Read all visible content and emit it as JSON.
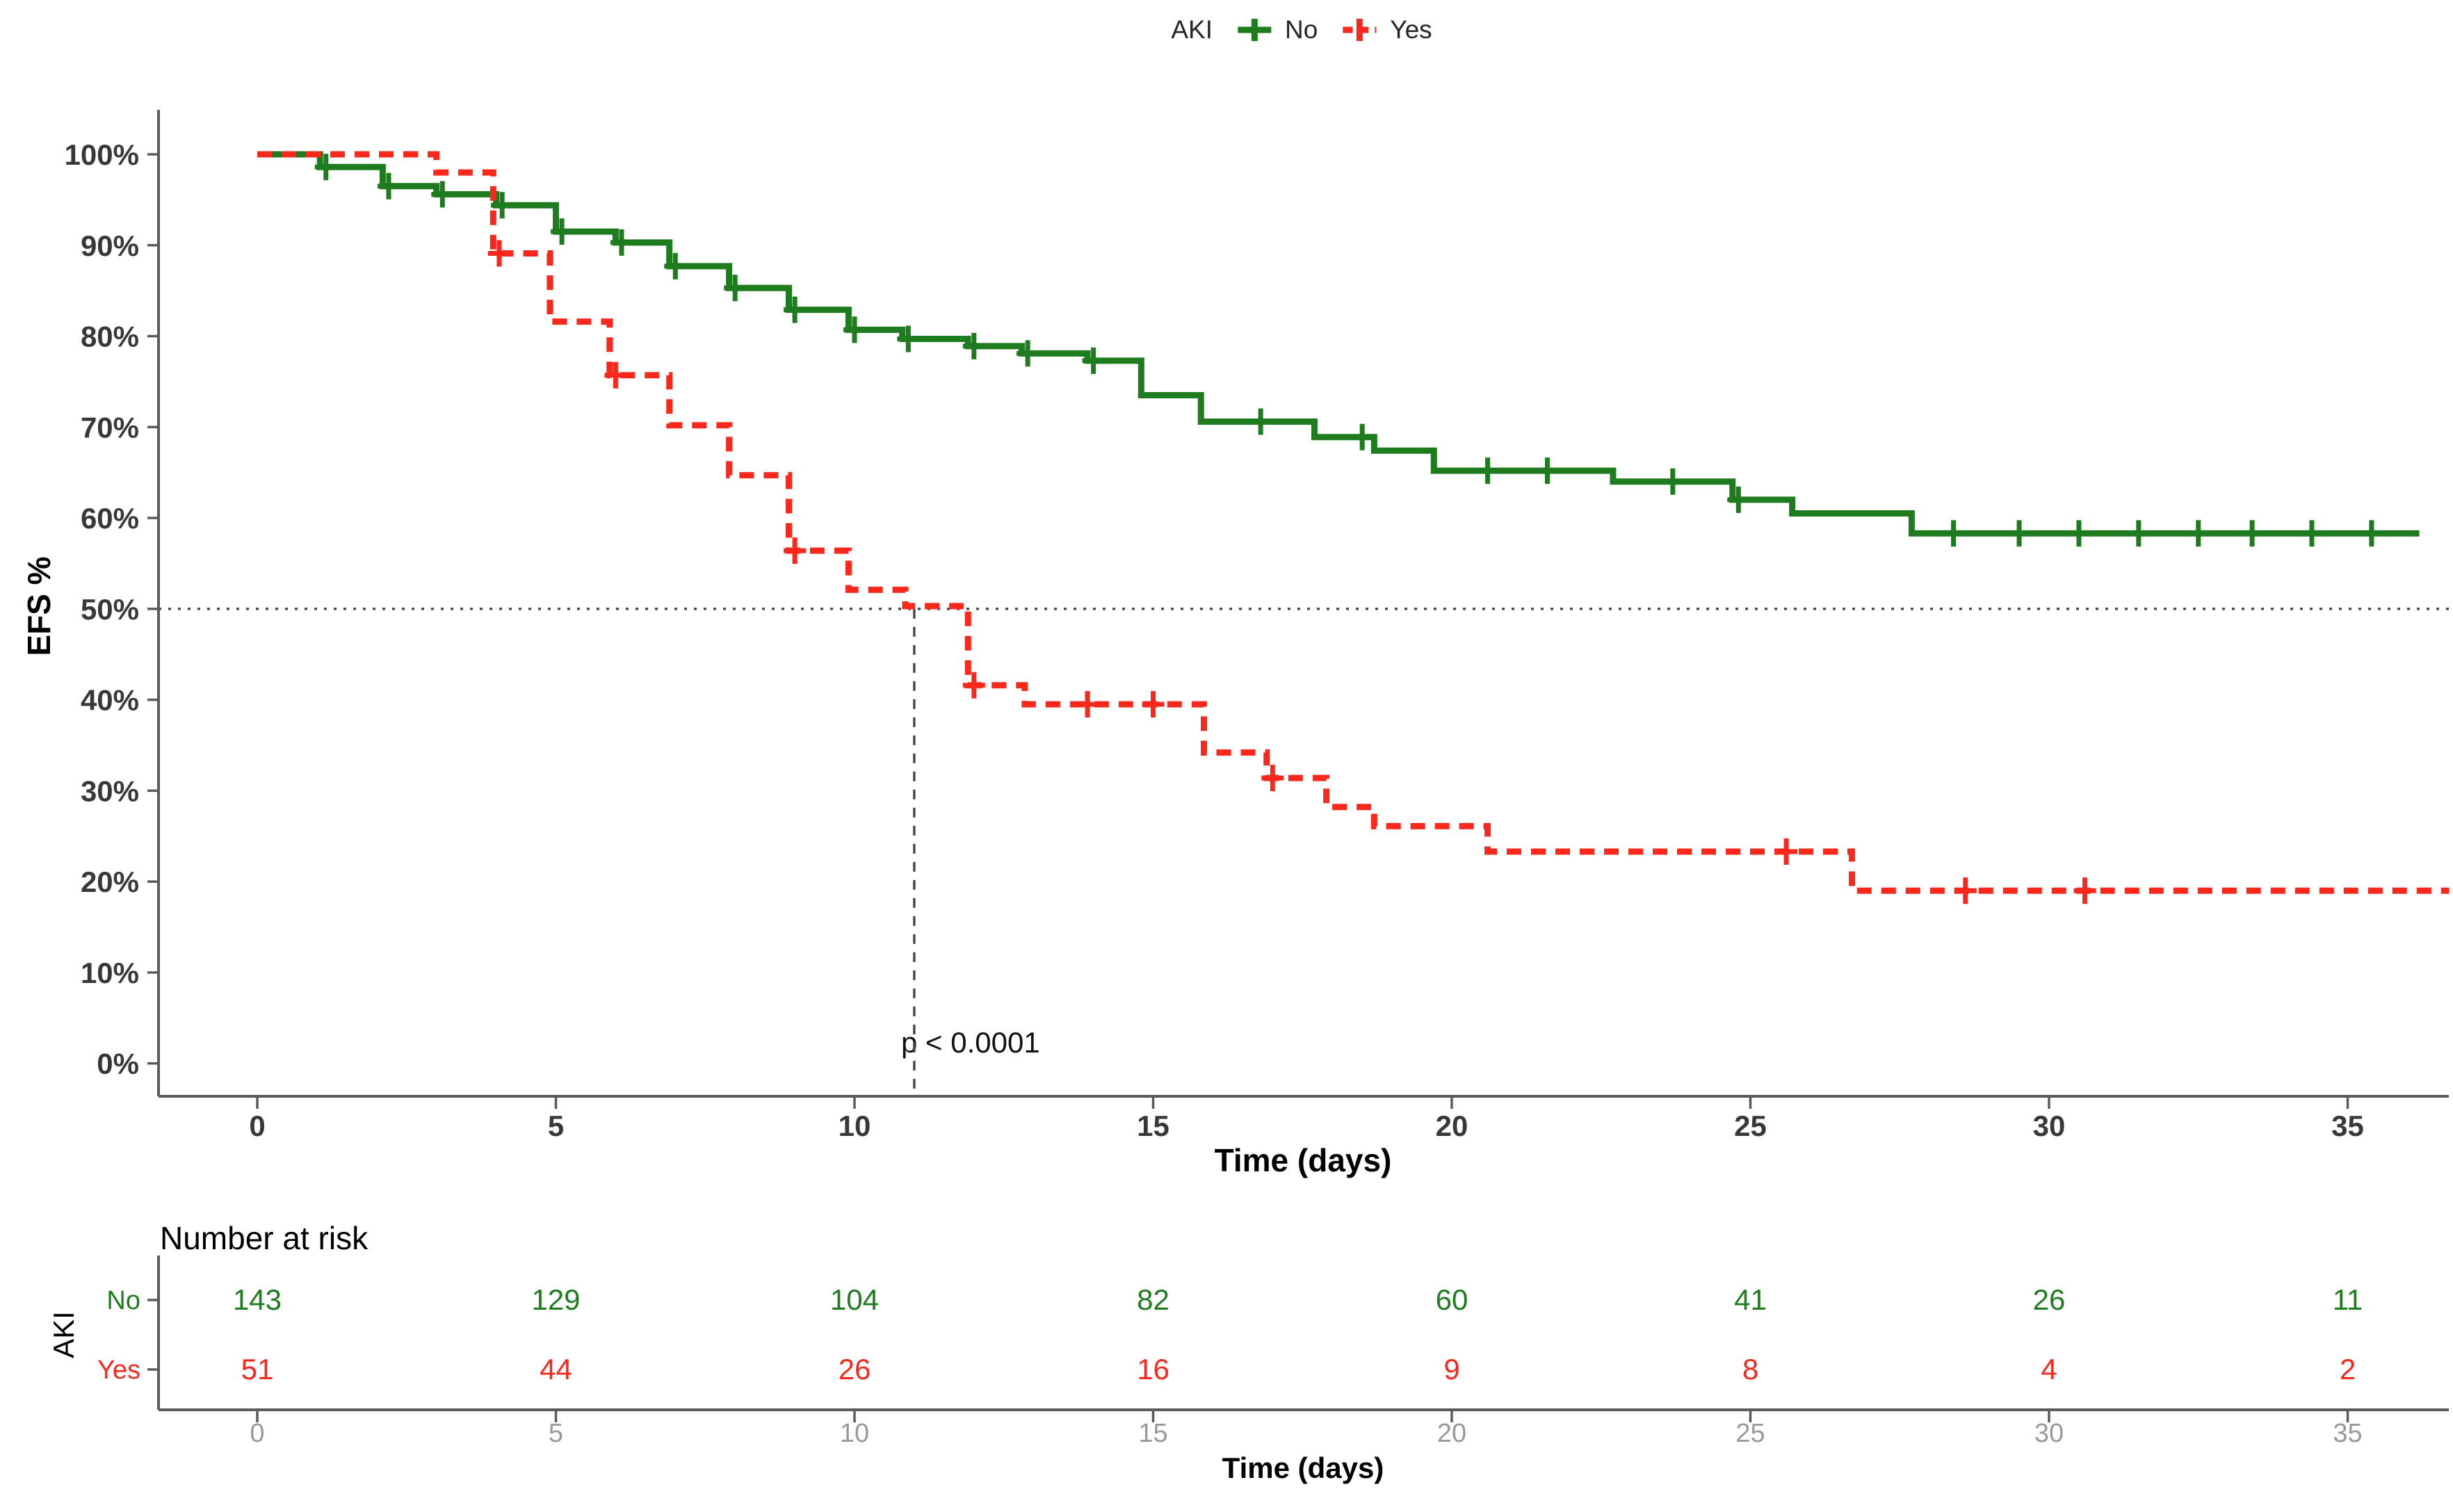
{
  "legend": {
    "title": "AKI",
    "items": [
      {
        "label": "No",
        "color": "#1e7b1e"
      },
      {
        "label": "Yes",
        "color": "#f8281c"
      }
    ]
  },
  "axes": {
    "y_label": "EFS %",
    "x_label": "Time (days)",
    "y_ticks": [
      "100%",
      "90%",
      "80%",
      "70%",
      "60%",
      "50%",
      "40%",
      "30%",
      "20%",
      "10%",
      "0%"
    ],
    "x_ticks": [
      0,
      5,
      10,
      15,
      20,
      25,
      30,
      35
    ]
  },
  "annotation": {
    "p_value": "p < 0.0001"
  },
  "risk_table": {
    "title": "Number at risk",
    "group_axis_label": "AKI",
    "x_label": "Time (days)",
    "times": [
      0,
      5,
      10,
      15,
      20,
      25,
      30,
      35
    ],
    "rows": [
      {
        "label": "No",
        "color": "#1e7b1e",
        "values": [
          143,
          129,
          104,
          82,
          60,
          41,
          26,
          11
        ]
      },
      {
        "label": "Yes",
        "color": "#f8281c",
        "values": [
          51,
          44,
          26,
          16,
          9,
          8,
          4,
          2
        ]
      }
    ]
  },
  "chart_data": {
    "type": "line",
    "subtype": "kaplan_meier_step",
    "title": "",
    "xlabel": "Time (days)",
    "ylabel": "EFS %",
    "xlim": [
      0,
      36.8
    ],
    "ylim": [
      0,
      100
    ],
    "grid": false,
    "legend_position": "top",
    "p_value": "p < 0.0001",
    "median_reference": {
      "time": 11,
      "percent": 50
    },
    "series": [
      {
        "name": "No",
        "color": "#1e7b1e",
        "line": "solid",
        "end_time": 36.2,
        "steps": [
          [
            0,
            100
          ],
          [
            1.05,
            98.6
          ],
          [
            2.1,
            96.5
          ],
          [
            3.0,
            95.6
          ],
          [
            4.0,
            94.4
          ],
          [
            5.0,
            91.5
          ],
          [
            6.0,
            90.3
          ],
          [
            6.9,
            87.7
          ],
          [
            7.9,
            85.3
          ],
          [
            8.9,
            82.9
          ],
          [
            9.9,
            80.7
          ],
          [
            10.8,
            79.7
          ],
          [
            11.9,
            78.9
          ],
          [
            12.8,
            78.1
          ],
          [
            13.9,
            77.3
          ],
          [
            14.8,
            73.5
          ],
          [
            15.8,
            70.6
          ],
          [
            17.7,
            68.9
          ],
          [
            18.7,
            67.4
          ],
          [
            19.7,
            65.2
          ],
          [
            22.7,
            64.0
          ],
          [
            24.7,
            62.0
          ],
          [
            25.7,
            60.5
          ],
          [
            27.7,
            58.3
          ]
        ],
        "censor_marks": [
          [
            1.15,
            98.6
          ],
          [
            2.2,
            96.5
          ],
          [
            3.1,
            95.6
          ],
          [
            4.1,
            94.4
          ],
          [
            5.1,
            91.5
          ],
          [
            6.1,
            90.3
          ],
          [
            7.0,
            87.7
          ],
          [
            8.0,
            85.3
          ],
          [
            9.0,
            82.9
          ],
          [
            10.0,
            80.7
          ],
          [
            10.9,
            79.7
          ],
          [
            12.0,
            78.9
          ],
          [
            12.9,
            78.1
          ],
          [
            14.0,
            77.3
          ],
          [
            16.8,
            70.6
          ],
          [
            18.5,
            68.9
          ],
          [
            20.6,
            65.2
          ],
          [
            21.6,
            65.2
          ],
          [
            23.7,
            64.0
          ],
          [
            24.8,
            62.0
          ],
          [
            28.4,
            58.3
          ],
          [
            29.5,
            58.3
          ],
          [
            30.5,
            58.3
          ],
          [
            31.5,
            58.3
          ],
          [
            32.5,
            58.3
          ],
          [
            33.4,
            58.3
          ],
          [
            34.4,
            58.3
          ],
          [
            35.4,
            58.3
          ]
        ]
      },
      {
        "name": "Yes",
        "color": "#f8281c",
        "line": "dashed",
        "end_time": 36.7,
        "steps": [
          [
            0,
            100
          ],
          [
            3.0,
            98.0
          ],
          [
            3.95,
            89.1
          ],
          [
            4.9,
            81.6
          ],
          [
            5.9,
            75.7
          ],
          [
            6.9,
            70.2
          ],
          [
            7.9,
            64.7
          ],
          [
            8.9,
            56.4
          ],
          [
            9.9,
            52.1
          ],
          [
            10.85,
            50.3
          ],
          [
            11.9,
            41.6
          ],
          [
            12.85,
            39.5
          ],
          [
            15.85,
            34.2
          ],
          [
            16.9,
            31.4
          ],
          [
            17.9,
            28.2
          ],
          [
            18.7,
            26.1
          ],
          [
            20.6,
            23.3
          ],
          [
            26.7,
            19.0
          ]
        ],
        "censor_marks": [
          [
            4.05,
            89.1
          ],
          [
            6.0,
            75.7
          ],
          [
            9.0,
            56.4
          ],
          [
            12.0,
            41.6
          ],
          [
            13.9,
            39.5
          ],
          [
            15.0,
            39.5
          ],
          [
            17.0,
            31.4
          ],
          [
            25.6,
            23.3
          ],
          [
            28.6,
            19.0
          ],
          [
            30.6,
            19.0
          ]
        ]
      }
    ]
  },
  "colors": {
    "axis_line": "#5a5a5a",
    "tick_text": "#383838",
    "risk_tick_text": "#999999",
    "reference_line": "#4a4a4a"
  }
}
